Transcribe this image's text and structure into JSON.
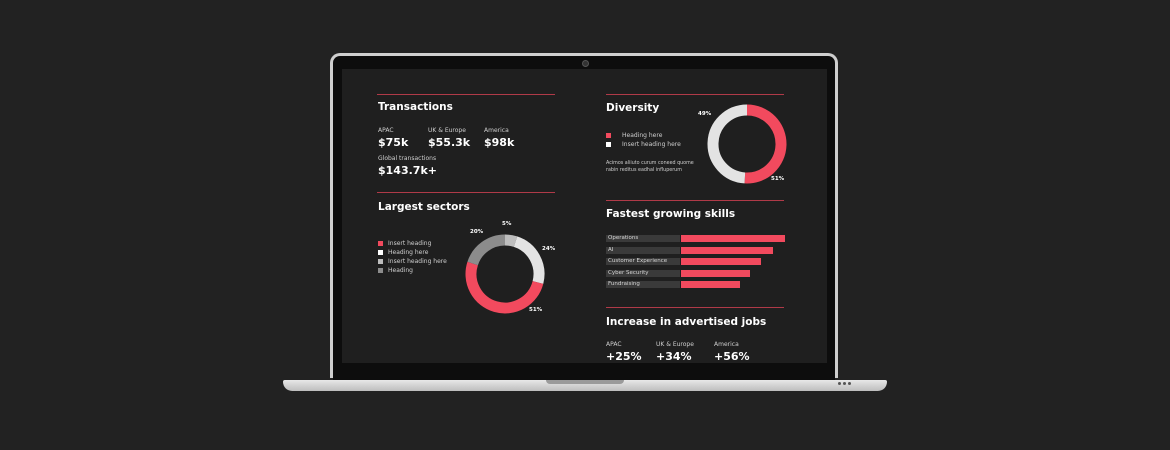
{
  "colors": {
    "accent": "#f24a5e",
    "white": "#ffffff",
    "grey": "#8c8c8c",
    "light_grey": "#e3e3e3"
  },
  "transactions": {
    "title": "Transactions",
    "regions": [
      {
        "label": "APAC",
        "value": "$75k"
      },
      {
        "label": "UK & Europe",
        "value": "$55.3k"
      },
      {
        "label": "America",
        "value": "$98k"
      }
    ],
    "global_label": "Global transactions",
    "global_value": "$143.7k+"
  },
  "diversity": {
    "title": "Diversity",
    "legend": [
      "Heading here",
      "Insert heading here"
    ],
    "description": "Acimos aliiuto curum coneed quome rabin reditus eadhal influperum",
    "segments": [
      {
        "label": "51%",
        "percent": 51,
        "color": "#f24a5e"
      },
      {
        "label": "49%",
        "percent": 49,
        "color": "#e3e3e3"
      }
    ]
  },
  "largest_sectors": {
    "title": "Largest sectors",
    "legend": [
      {
        "label": "Insert heading",
        "color": "#f24a5e"
      },
      {
        "label": "Heading here",
        "color": "#ffffff"
      },
      {
        "label": "Insert heading here",
        "color": "#bdbdbd"
      },
      {
        "label": "Heading",
        "color": "#8c8c8c"
      }
    ],
    "segments": [
      {
        "label": "5%",
        "percent": 5,
        "color": "#bdbdbd"
      },
      {
        "label": "24%",
        "percent": 24,
        "color": "#e3e3e3"
      },
      {
        "label": "51%",
        "percent": 51,
        "color": "#f24a5e"
      },
      {
        "label": "20%",
        "percent": 20,
        "color": "#8c8c8c"
      }
    ]
  },
  "skills": {
    "title": "Fastest growing skills",
    "items": [
      {
        "label": "Operations",
        "value": 100
      },
      {
        "label": "AI",
        "value": 88
      },
      {
        "label": "Customer Experience",
        "value": 77
      },
      {
        "label": "Cyber Security",
        "value": 66
      },
      {
        "label": "Fundraising",
        "value": 57
      }
    ]
  },
  "jobs": {
    "title": "Increase in advertised jobs",
    "regions": [
      {
        "label": "APAC",
        "value": "+25%"
      },
      {
        "label": "UK & Europe",
        "value": "+34%"
      },
      {
        "label": "America",
        "value": "+56%"
      }
    ]
  }
}
